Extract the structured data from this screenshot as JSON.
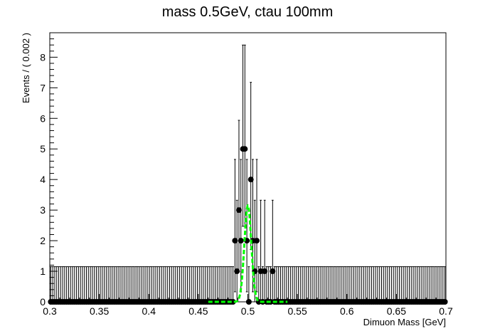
{
  "chart_data": {
    "type": "scatter",
    "title": "mass 0.5GeV, ctau 100mm",
    "xlabel": "Dimuon Mass [GeV]",
    "ylabel": "Events / ( 0.002 )",
    "xlim": [
      0.3,
      0.7
    ],
    "ylim": [
      0,
      8.8
    ],
    "xticks": [
      "0.3",
      "0.35",
      "0.4",
      "0.45",
      "0.5",
      "0.55",
      "0.6",
      "0.65",
      "0.7"
    ],
    "yticks": [
      "0",
      "1",
      "2",
      "3",
      "4",
      "5",
      "6",
      "7",
      "8"
    ],
    "bin_width": 0.002,
    "points": [
      {
        "x": 0.487,
        "y": 2
      },
      {
        "x": 0.489,
        "y": 1
      },
      {
        "x": 0.491,
        "y": 3
      },
      {
        "x": 0.493,
        "y": 2
      },
      {
        "x": 0.495,
        "y": 5
      },
      {
        "x": 0.497,
        "y": 5
      },
      {
        "x": 0.499,
        "y": 2
      },
      {
        "x": 0.501,
        "y": 0
      },
      {
        "x": 0.503,
        "y": 4
      },
      {
        "x": 0.505,
        "y": 2
      },
      {
        "x": 0.507,
        "y": 1
      },
      {
        "x": 0.509,
        "y": 2
      },
      {
        "x": 0.511,
        "y": 0
      },
      {
        "x": 0.513,
        "y": 1
      },
      {
        "x": 0.517,
        "y": 1
      },
      {
        "x": 0.525,
        "y": 1
      }
    ],
    "fit_curve": {
      "type": "gaussian",
      "mean": 0.5,
      "sigma": 0.0035,
      "amplitude": 3.15,
      "color": "#00ff00",
      "style": "dashed"
    },
    "marker_color": "#000000"
  }
}
